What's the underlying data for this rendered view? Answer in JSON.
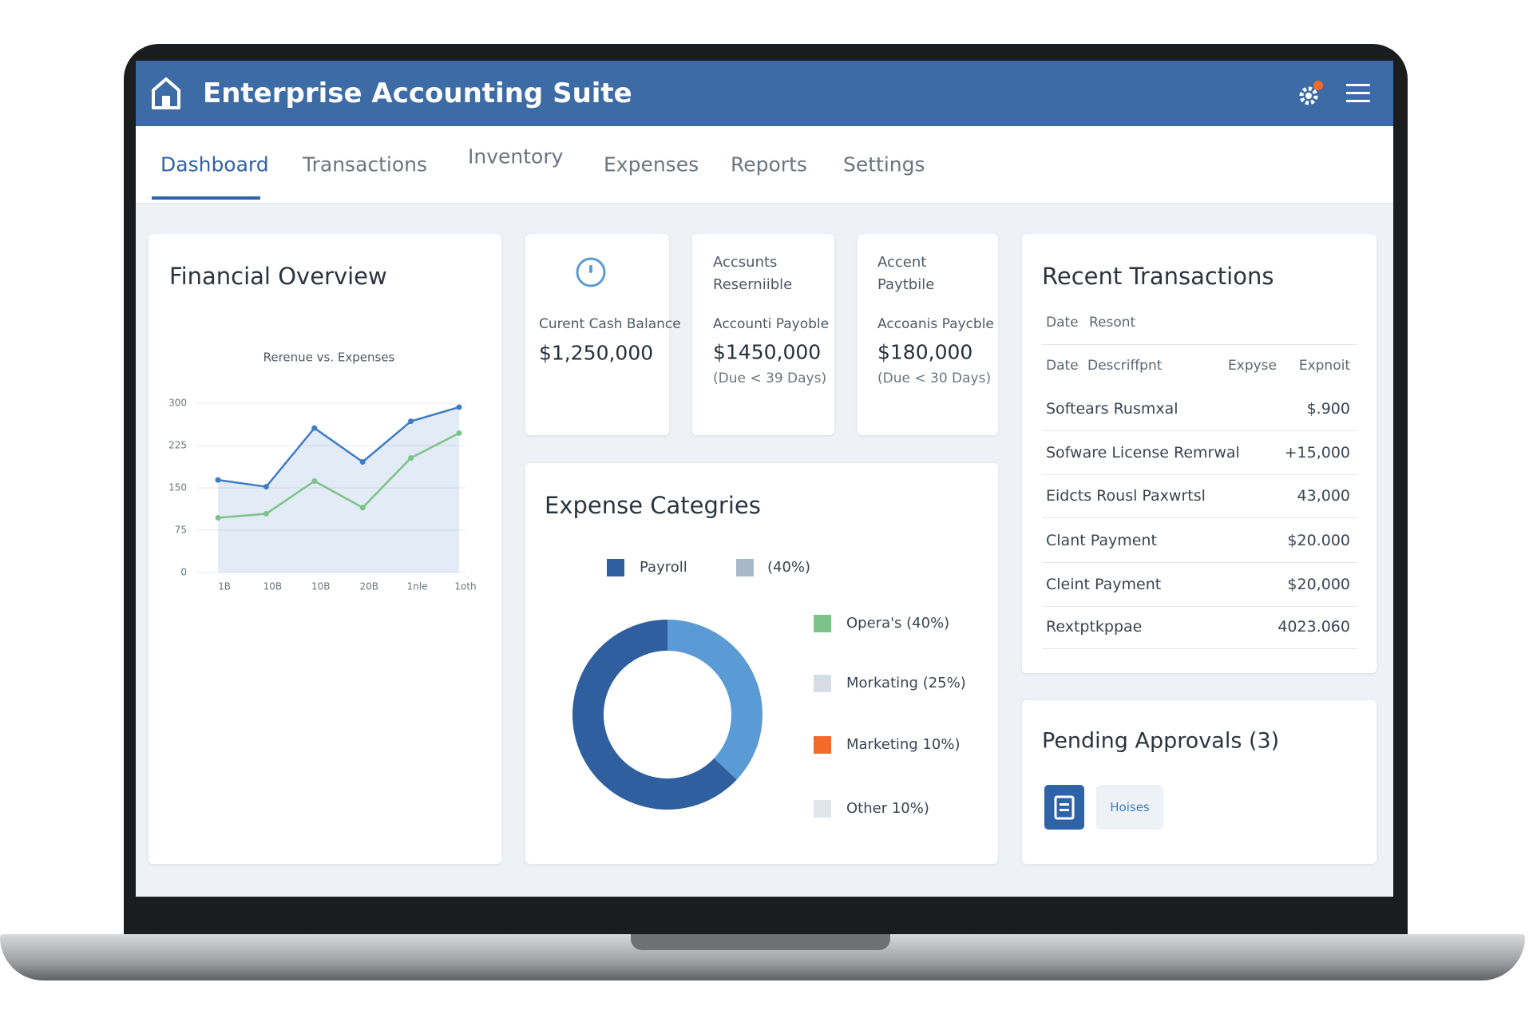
{
  "app": {
    "title": "Enterprise Accounting Suite",
    "nav": [
      "Dashboard",
      "Transactions",
      "Inventory",
      "Expenses",
      "Reports",
      "Settings"
    ],
    "financial_overview": {
      "title": "Financial Overview"
    },
    "cards": [
      {
        "label": "Curent Cash Balance",
        "value": "$1,250,000"
      },
      {
        "title": "Accsunts Reserniible",
        "label": "Accounti Payoble",
        "value": "$1450,000",
        "note": "(Due < 39 Days)"
      },
      {
        "title": "Accent Paytbile",
        "label": "Accoanis Paycble",
        "value": "$180,000",
        "note": "(Due < 30 Days)"
      }
    ],
    "recent_transactions": {
      "title": "Recent Transactions",
      "header1": [
        "Date",
        "Resont"
      ],
      "header2": [
        "Date",
        "Descriffpnt",
        "Expyse",
        "Expnoit"
      ],
      "rows": [
        [
          "Softears Rusmxal",
          "$.900"
        ],
        [
          "Sofware License Remrwal",
          "+15,000"
        ],
        [
          "Eidcts Rousl Paxwrtsl",
          "43,000"
        ],
        [
          "Clant Payment",
          "$20.000"
        ],
        [
          "Cleint Payment",
          "$20,000"
        ],
        [
          "Rextptkppae",
          "4023.060"
        ]
      ]
    },
    "pending_approvals": {
      "title": "Pending Approvals (3)",
      "button": "Hoises"
    }
  },
  "chart_data": [
    {
      "type": "line",
      "title": "Rerenue vs. Expenses",
      "categories": [
        "1B",
        "10B",
        "10B",
        "20B",
        "1nle",
        "1oth"
      ],
      "series": [
        {
          "color": "#3f7cc4",
          "values": [
            164,
            152,
            256,
            196,
            268,
            293
          ]
        },
        {
          "color": "#7cc389",
          "values": [
            97,
            104,
            162,
            115,
            203,
            247
          ]
        }
      ],
      "ylim": [
        0,
        300
      ],
      "yticks": [
        0,
        75,
        150,
        225,
        300
      ],
      "grid": true
    },
    {
      "type": "pie",
      "title": "Expense Categries",
      "donut": true,
      "values": [
        37,
        63
      ],
      "colors": [
        "#5b9bd5",
        "#2f5f9e"
      ],
      "legend": [
        {
          "label": "Payroll",
          "color": "#2f5f9e"
        },
        {
          "label": "(40%)",
          "color": "#a8b7c9"
        },
        {
          "label": "Opera's (40%)",
          "color": "#7cc389"
        },
        {
          "label": "Morkating (25%)",
          "color": "#d6dde4"
        },
        {
          "label": "Marketing 10%)",
          "color": "#f26b2a"
        },
        {
          "label": "Other 10%)",
          "color": "#dfe5ea"
        }
      ]
    }
  ]
}
